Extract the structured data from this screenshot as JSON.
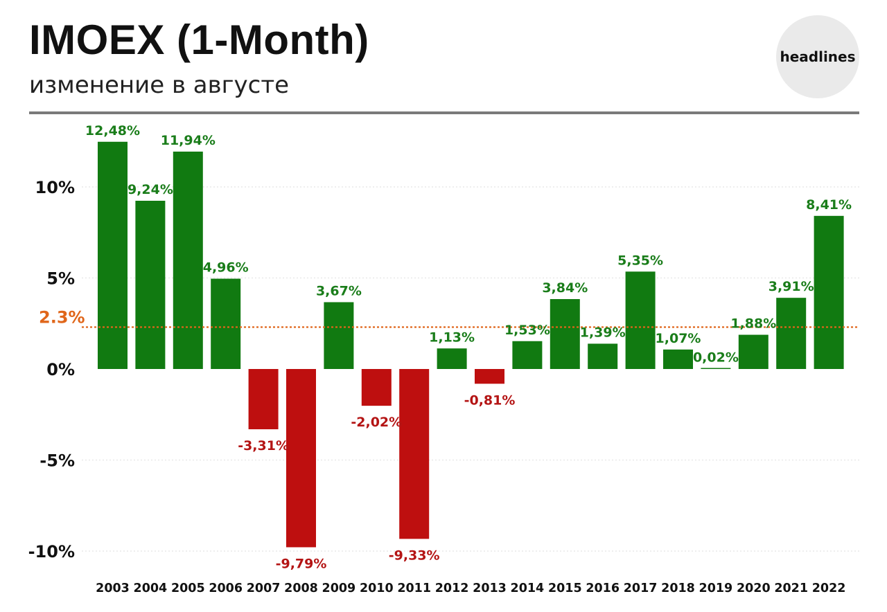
{
  "header": {
    "title": "IMOEX (1-Month)",
    "subtitle": "изменение в августе",
    "logo_text": "headlines"
  },
  "colors": {
    "positive": "#117a11",
    "negative": "#be0f0f",
    "positive_label": "#1a7d1a",
    "negative_label": "#b41414",
    "average": "#e0661a"
  },
  "chart_data": {
    "type": "bar",
    "title": "IMOEX (1-Month)",
    "subtitle": "изменение в августе",
    "xlabel": "",
    "ylabel": "",
    "ylim": [
      -11,
      14
    ],
    "y_ticks": [
      {
        "value": 10,
        "label": "10%"
      },
      {
        "value": 5,
        "label": "5%"
      },
      {
        "value": 0,
        "label": "0%"
      },
      {
        "value": -5,
        "label": "-5%"
      },
      {
        "value": -10,
        "label": "-10%"
      }
    ],
    "grid": true,
    "average_line": {
      "value": 2.3,
      "label": "2.3%"
    },
    "categories": [
      "2003",
      "2004",
      "2005",
      "2006",
      "2007",
      "2008",
      "2009",
      "2010",
      "2011",
      "2012",
      "2013",
      "2014",
      "2015",
      "2016",
      "2017",
      "2018",
      "2019",
      "2020",
      "2021",
      "2022"
    ],
    "values": [
      12.48,
      9.24,
      11.94,
      4.96,
      -3.31,
      -9.79,
      3.67,
      -2.02,
      -9.33,
      1.13,
      -0.81,
      1.53,
      3.84,
      1.39,
      5.35,
      1.07,
      0.02,
      1.88,
      3.91,
      8.41
    ],
    "value_labels": [
      "12,48%",
      "9,24%",
      "11,94%",
      "4,96%",
      "-3,31%",
      "-9,79%",
      "3,67%",
      "-2,02%",
      "-9,33%",
      "1,13%",
      "-0,81%",
      "1,53%",
      "3,84%",
      "1,39%",
      "5,35%",
      "1,07%",
      "0,02%",
      "1,88%",
      "3,91%",
      "8,41%"
    ]
  }
}
